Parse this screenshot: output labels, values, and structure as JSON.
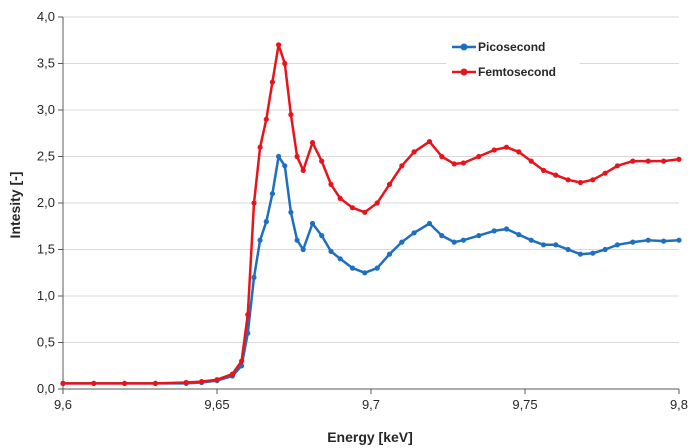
{
  "chart_data": {
    "type": "line",
    "title": "",
    "xlabel": "Energy [keV]",
    "ylabel": "Intesity [-]",
    "xlim": [
      9.6,
      9.8
    ],
    "ylim": [
      0.0,
      4.0
    ],
    "x_ticks": [
      "9,6",
      "9,65",
      "9,7",
      "9,75",
      "9,8"
    ],
    "y_ticks": [
      "0,0",
      "0,5",
      "1,0",
      "1,5",
      "2,0",
      "2,5",
      "3,0",
      "3,5",
      "4,0"
    ],
    "grid": "horizontal",
    "legend_position": "top-right",
    "series": [
      {
        "name": "Picosecond",
        "color": "#1f6fc0",
        "x": [
          9.6,
          9.61,
          9.62,
          9.63,
          9.64,
          9.645,
          9.65,
          9.655,
          9.658,
          9.66,
          9.662,
          9.664,
          9.666,
          9.668,
          9.67,
          9.672,
          9.674,
          9.676,
          9.678,
          9.681,
          9.684,
          9.687,
          9.69,
          9.694,
          9.698,
          9.702,
          9.706,
          9.71,
          9.714,
          9.719,
          9.723,
          9.727,
          9.73,
          9.735,
          9.74,
          9.744,
          9.748,
          9.752,
          9.756,
          9.76,
          9.764,
          9.768,
          9.772,
          9.776,
          9.78,
          9.785,
          9.79,
          9.795,
          9.8
        ],
        "y": [
          0.06,
          0.06,
          0.06,
          0.06,
          0.06,
          0.07,
          0.09,
          0.14,
          0.25,
          0.6,
          1.2,
          1.6,
          1.8,
          2.1,
          2.5,
          2.4,
          1.9,
          1.6,
          1.5,
          1.78,
          1.65,
          1.48,
          1.4,
          1.3,
          1.25,
          1.3,
          1.45,
          1.58,
          1.68,
          1.78,
          1.65,
          1.58,
          1.6,
          1.65,
          1.7,
          1.72,
          1.66,
          1.6,
          1.55,
          1.55,
          1.5,
          1.45,
          1.46,
          1.5,
          1.55,
          1.58,
          1.6,
          1.59,
          1.6
        ]
      },
      {
        "name": "Femtosecond",
        "color": "#e8141b",
        "x": [
          9.6,
          9.61,
          9.62,
          9.63,
          9.64,
          9.645,
          9.65,
          9.655,
          9.658,
          9.66,
          9.662,
          9.664,
          9.666,
          9.668,
          9.67,
          9.672,
          9.674,
          9.676,
          9.678,
          9.681,
          9.684,
          9.687,
          9.69,
          9.694,
          9.698,
          9.702,
          9.706,
          9.71,
          9.714,
          9.719,
          9.723,
          9.727,
          9.73,
          9.735,
          9.74,
          9.744,
          9.748,
          9.752,
          9.756,
          9.76,
          9.764,
          9.768,
          9.772,
          9.776,
          9.78,
          9.785,
          9.79,
          9.795,
          9.8
        ],
        "y": [
          0.06,
          0.06,
          0.06,
          0.06,
          0.07,
          0.08,
          0.1,
          0.16,
          0.3,
          0.8,
          2.0,
          2.6,
          2.9,
          3.3,
          3.7,
          3.5,
          2.95,
          2.5,
          2.35,
          2.65,
          2.45,
          2.2,
          2.05,
          1.95,
          1.9,
          2.0,
          2.2,
          2.4,
          2.55,
          2.66,
          2.5,
          2.42,
          2.43,
          2.5,
          2.57,
          2.6,
          2.55,
          2.45,
          2.35,
          2.3,
          2.25,
          2.22,
          2.25,
          2.32,
          2.4,
          2.45,
          2.45,
          2.45,
          2.47
        ]
      }
    ]
  }
}
